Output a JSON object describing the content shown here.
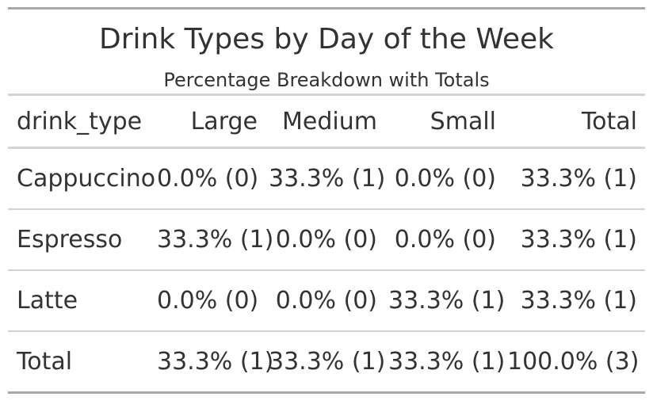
{
  "title": "Drink Types by Day of the Week",
  "subtitle": "Percentage Breakdown with Totals",
  "colors": {
    "text": "#333333",
    "rule_strong": "#a8a8a8",
    "rule_light": "#d3d3d3",
    "background": "#ffffff"
  },
  "chart_data": {
    "type": "table",
    "title": "Drink Types by Day of the Week",
    "subtitle": "Percentage Breakdown with Totals",
    "columns": [
      "drink_type",
      "Large",
      "Medium",
      "Small",
      "Total"
    ],
    "rows": [
      [
        "Cappuccino",
        "0.0% (0)",
        "33.3% (1)",
        "0.0% (0)",
        "33.3% (1)"
      ],
      [
        "Espresso",
        "33.3% (1)",
        "0.0% (0)",
        "0.0% (0)",
        "33.3% (1)"
      ],
      [
        "Latte",
        "0.0% (0)",
        "0.0% (0)",
        "33.3% (1)",
        "33.3% (1)"
      ],
      [
        "Total",
        "33.3% (1)",
        "33.3% (1)",
        "33.3% (1)",
        "100.0% (3)"
      ]
    ]
  }
}
